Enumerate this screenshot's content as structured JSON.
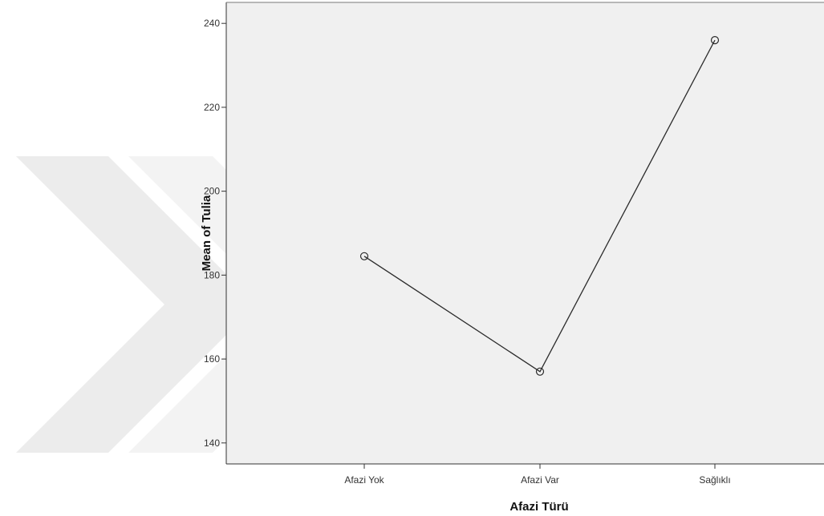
{
  "chart_data": {
    "type": "line",
    "categories": [
      "Afazi Yok",
      "Afazi Var",
      "Sağlıklı"
    ],
    "series": [
      {
        "values": [
          184.5,
          157,
          236
        ]
      }
    ],
    "xlabel": "Afazi Türü",
    "ylabel": "Mean of Tulia",
    "ylim": [
      135,
      245
    ],
    "yticks": [
      140,
      160,
      180,
      200,
      220,
      240
    ],
    "grid": false,
    "markers": "open-circle",
    "colors": {
      "plot_background": "#f0f0f0",
      "line": "#2b2b2b",
      "axis": "#333333",
      "watermark": "#ececec"
    }
  }
}
